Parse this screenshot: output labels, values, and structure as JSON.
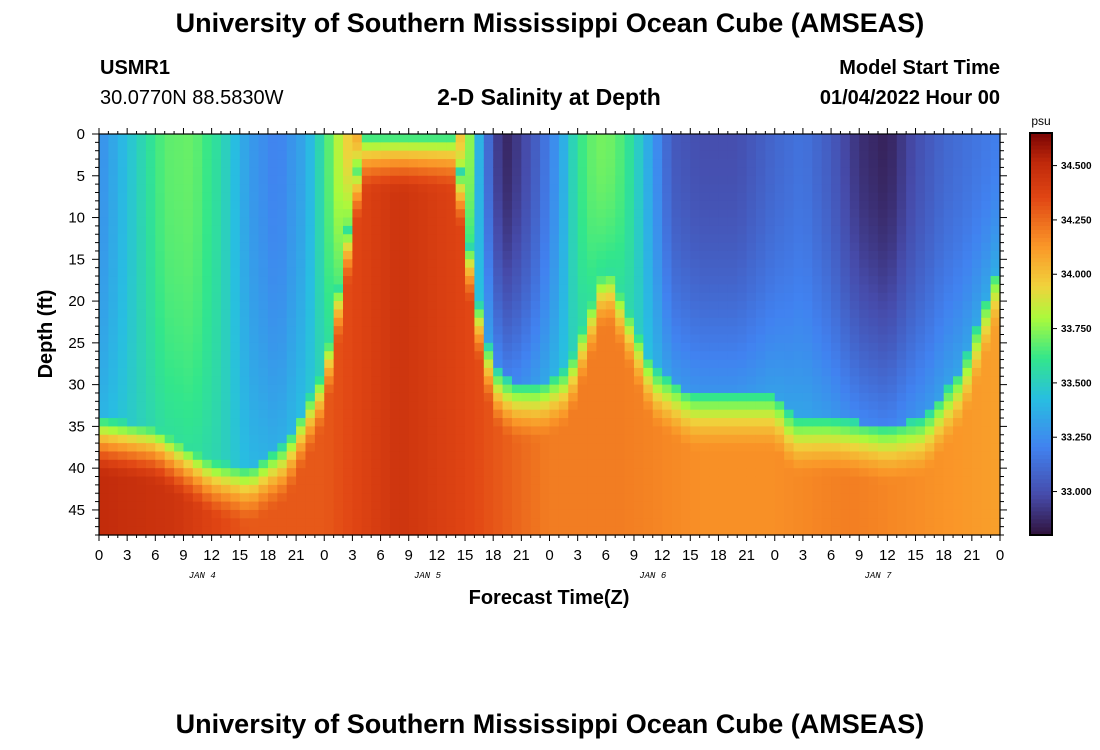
{
  "title": "University of Southern Mississippi Ocean Cube (AMSEAS)",
  "footer_title": "University of Southern Mississippi Ocean Cube (AMSEAS)",
  "station": {
    "name": "USMR1",
    "coords": "30.0770N  88.5830W"
  },
  "model_start": {
    "label": "Model Start Time",
    "value": "01/04/2022 Hour 00"
  },
  "chart_data": {
    "type": "heatmap",
    "title": "2-D Salinity at Depth",
    "xlabel": "Forecast Time(Z)",
    "ylabel": "Depth (ft)",
    "x_range_hours": [
      0,
      96
    ],
    "x_tick_labels": [
      "0",
      "3",
      "6",
      "9",
      "12",
      "15",
      "18",
      "21",
      "0",
      "3",
      "6",
      "9",
      "12",
      "15",
      "18",
      "21",
      "0",
      "3",
      "6",
      "9",
      "12",
      "15",
      "18",
      "21",
      "0",
      "3",
      "6",
      "9",
      "12",
      "15",
      "18",
      "21",
      "0"
    ],
    "day_labels": [
      {
        "label": "JAN 4",
        "hour": 11
      },
      {
        "label": "JAN 5",
        "hour": 35
      },
      {
        "label": "JAN 6",
        "hour": 59
      },
      {
        "label": "JAN 7",
        "hour": 83
      }
    ],
    "y_range_ft": [
      0,
      48
    ],
    "y_ticks": [
      0,
      5,
      10,
      15,
      20,
      25,
      30,
      35,
      40,
      45
    ],
    "colorbar": {
      "unit": "psu",
      "min": 32.8,
      "max": 34.65,
      "ticks": [
        "34.500",
        "34.250",
        "34.000",
        "33.750",
        "33.500",
        "33.250",
        "33.000"
      ],
      "tick_values": [
        34.5,
        34.25,
        34.0,
        33.75,
        33.5,
        33.25,
        33.0
      ]
    },
    "surface_salinity_by_hour": [
      [
        0,
        33.25
      ],
      [
        4,
        33.5
      ],
      [
        7,
        33.68
      ],
      [
        10,
        33.7
      ],
      [
        13,
        33.55
      ],
      [
        16,
        33.3
      ],
      [
        19,
        33.2
      ],
      [
        22,
        33.35
      ],
      [
        24,
        33.6
      ],
      [
        26,
        33.9
      ],
      [
        28,
        34.1
      ],
      [
        31,
        34.25
      ],
      [
        34,
        34.3
      ],
      [
        36,
        34.25
      ],
      [
        38,
        34.1
      ],
      [
        39.5,
        33.75
      ],
      [
        41,
        33.2
      ],
      [
        43,
        32.85
      ],
      [
        45,
        32.95
      ],
      [
        47,
        33.1
      ],
      [
        49,
        33.3
      ],
      [
        51,
        33.6
      ],
      [
        53,
        33.72
      ],
      [
        55,
        33.7
      ],
      [
        57,
        33.55
      ],
      [
        59,
        33.3
      ],
      [
        61,
        33.05
      ],
      [
        64,
        33.0
      ],
      [
        68,
        33.0
      ],
      [
        72,
        33.1
      ],
      [
        75,
        33.15
      ],
      [
        78,
        33.05
      ],
      [
        81,
        32.9
      ],
      [
        84,
        32.85
      ],
      [
        87,
        33.0
      ],
      [
        90,
        33.1
      ],
      [
        93,
        33.15
      ],
      [
        96,
        33.2
      ]
    ],
    "halocline_depth_ft_by_hour": [
      [
        0,
        34
      ],
      [
        6,
        35
      ],
      [
        12,
        39
      ],
      [
        16,
        40
      ],
      [
        20,
        37
      ],
      [
        24,
        28
      ],
      [
        26,
        15
      ],
      [
        28,
        0
      ],
      [
        38,
        0
      ],
      [
        40,
        18
      ],
      [
        42,
        28
      ],
      [
        44,
        30
      ],
      [
        47,
        30
      ],
      [
        50,
        28
      ],
      [
        54,
        15
      ],
      [
        56,
        20
      ],
      [
        59,
        28
      ],
      [
        63,
        31
      ],
      [
        72,
        31
      ],
      [
        74,
        34
      ],
      [
        78,
        34
      ],
      [
        84,
        35
      ],
      [
        88,
        34
      ],
      [
        92,
        28
      ],
      [
        96,
        15
      ]
    ],
    "bottom_salinity_by_hour": [
      [
        0,
        34.5
      ],
      [
        8,
        34.45
      ],
      [
        16,
        34.3
      ],
      [
        24,
        34.3
      ],
      [
        32,
        34.45
      ],
      [
        40,
        34.35
      ],
      [
        48,
        34.2
      ],
      [
        56,
        34.2
      ],
      [
        64,
        34.15
      ],
      [
        72,
        34.15
      ],
      [
        80,
        34.2
      ],
      [
        88,
        34.15
      ],
      [
        96,
        34.1
      ]
    ]
  }
}
